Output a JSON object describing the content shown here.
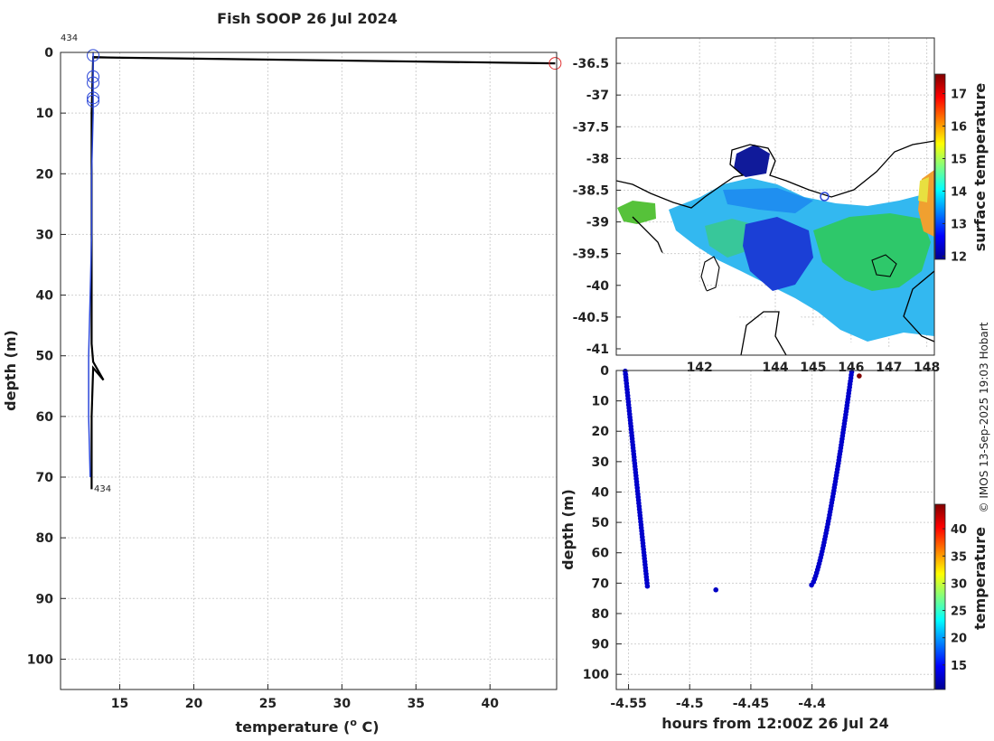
{
  "chart_data": [
    {
      "type": "line",
      "title": "Fish SOOP 26 Jul 2024",
      "xlabel": "temperature (",
      "xlabel_super": "o",
      "xlabel_tail": " C)",
      "ylabel": "depth (m)",
      "xlim": [
        11,
        44.5
      ],
      "ylim": [
        105,
        0
      ],
      "xticks": [
        15,
        20,
        25,
        30,
        35,
        40
      ],
      "yticks": [
        0,
        10,
        20,
        30,
        40,
        50,
        60,
        70,
        80,
        90,
        100
      ],
      "annotations": [
        {
          "text": "434",
          "at": "top-left of profile"
        },
        {
          "text": "434",
          "at": "bottom of profile"
        }
      ],
      "series": [
        {
          "name": "cast-black",
          "color": "#000000",
          "points": [
            [
              13.2,
              0.8
            ],
            [
              44.4,
              1.8
            ],
            [
              13.2,
              0.8
            ],
            [
              13.1,
              10
            ],
            [
              13.1,
              20
            ],
            [
              13.1,
              30
            ],
            [
              13.1,
              40
            ],
            [
              13.1,
              48
            ],
            [
              13.2,
              51
            ],
            [
              13.9,
              54
            ],
            [
              13.2,
              52
            ],
            [
              13.1,
              60
            ],
            [
              13.1,
              72
            ]
          ]
        },
        {
          "name": "cast-blue",
          "color": "#2a46d8",
          "points": [
            [
              13.2,
              0
            ],
            [
              13.2,
              10
            ],
            [
              13.1,
              20
            ],
            [
              13.1,
              30
            ],
            [
              13.0,
              40
            ],
            [
              12.9,
              50
            ],
            [
              12.9,
              60
            ],
            [
              13.0,
              70
            ]
          ]
        },
        {
          "name": "blue-markers",
          "color": "#2a46d8",
          "points": [
            [
              13.2,
              0.5
            ],
            [
              13.2,
              4
            ],
            [
              13.2,
              5
            ],
            [
              13.2,
              7.5
            ],
            [
              13.2,
              8
            ]
          ]
        },
        {
          "name": "red-marker",
          "color": "#e03030",
          "points": [
            [
              44.4,
              1.8
            ]
          ]
        }
      ]
    },
    {
      "type": "heatmap",
      "xticks": [
        142,
        144,
        145,
        146,
        147,
        148
      ],
      "yticks": [
        -36.5,
        -37,
        -37.5,
        -38,
        -38.5,
        -39,
        -39.5,
        -40,
        -40.5,
        -41
      ],
      "xlim": [
        139.8,
        148.2
      ],
      "ylim": [
        -41.1,
        -36.1
      ],
      "colorbar_label": "surface temperature",
      "colorbar_ticks": [
        12,
        13,
        14,
        15,
        16,
        17
      ],
      "colorbar_range": [
        11.9,
        17.6
      ],
      "marker": {
        "lon": 145.3,
        "lat": -38.6
      }
    },
    {
      "type": "scatter",
      "xlabel": "hours from 12:00Z 26 Jul 24",
      "ylabel": "depth (m)",
      "xlim": [
        -4.56,
        -4.3
      ],
      "ylim": [
        105,
        0
      ],
      "xticks": [
        -4.55,
        -4.5,
        -4.45,
        -4.4
      ],
      "yticks": [
        0,
        10,
        20,
        30,
        40,
        50,
        60,
        70,
        80,
        90,
        100
      ],
      "colorbar_label": "temperature",
      "colorbar_ticks": [
        15,
        20,
        25,
        30,
        35,
        40
      ],
      "colorbar_range": [
        10.5,
        44.5
      ],
      "descent": {
        "start": [
          -4.5527,
          0.2
        ],
        "end": [
          -4.5346,
          71
        ]
      },
      "ascent": {
        "start": [
          -4.4004,
          70.6
        ],
        "end": [
          -4.3676,
          0.5
        ]
      },
      "extra_points": [
        {
          "x": -4.4786,
          "y": 72.2,
          "temp": 12.8
        },
        {
          "x": -4.3614,
          "y": 1.8,
          "temp": 44.4
        }
      ]
    }
  ],
  "credit": "© IMOS 13-Sep-2025 19:03 Hobart"
}
